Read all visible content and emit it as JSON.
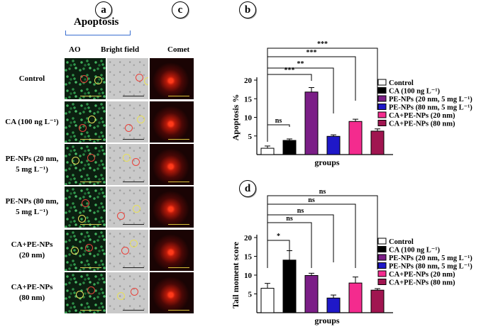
{
  "panels": {
    "a": "a",
    "b": "b",
    "c": "c",
    "d": "d"
  },
  "panel_a": {
    "apoptosis_label": "Apoptosis",
    "col_ao": "AO",
    "col_bf": "Bright field",
    "col_comet": "Comet"
  },
  "row_labels": [
    [
      "Control"
    ],
    [
      "CA (100 ng L⁻¹)"
    ],
    [
      "PE-NPs (20 nm,",
      "5 mg L⁻¹)"
    ],
    [
      "PE-NPs (80 nm,",
      "5 mg L⁻¹)"
    ],
    [
      "CA+PE-NPs",
      "(20 nm)"
    ],
    [
      "CA+PE-NPs",
      "(80 nm)"
    ]
  ],
  "colors": {
    "control": "#ffffff",
    "ca": "#000000",
    "pe20": "#7b1e87",
    "pe80": "#1f18c8",
    "capes20": "#f42b8e",
    "capes80": "#a01550",
    "ao_bar": "#d6cc55",
    "bf_bar": "#222222",
    "comet_bar": "#d9c23a"
  },
  "legend": [
    "Control",
    "CA (100 ng L⁻¹)",
    "PE-NPs (20 nm, 5 mg L⁻¹)",
    "PE-NPs (80 nm, 5 mg L⁻¹)",
    "CA+PE-NPs (20 nm)",
    "CA+PE-NPs (80 nm)"
  ],
  "chart_data": [
    {
      "type": "bar",
      "panel": "b",
      "ylabel": "Apoptosis %",
      "xlabel": "groups",
      "ylim": [
        0,
        20
      ],
      "yticks": [
        5,
        10,
        15,
        20
      ],
      "categories": [
        "Control",
        "CA (100 ng L⁻¹)",
        "PE-NPs (20 nm, 5 mg L⁻¹)",
        "PE-NPs (80 nm, 5 mg L⁻¹)",
        "CA+PE-NPs (20 nm)",
        "CA+PE-NPs (80 nm)"
      ],
      "values": [
        1.7,
        3.8,
        16.8,
        4.9,
        8.9,
        6.3
      ],
      "errors": [
        0.6,
        0.4,
        1.2,
        0.4,
        0.6,
        0.6
      ],
      "significance": [
        {
          "from": 0,
          "to": 1,
          "label": "ns"
        },
        {
          "from": 0,
          "to": 2,
          "label": "***"
        },
        {
          "from": 0,
          "to": 3,
          "label": "**"
        },
        {
          "from": 0,
          "to": 4,
          "label": "***"
        },
        {
          "from": 0,
          "to": 5,
          "label": "***"
        }
      ]
    },
    {
      "type": "bar",
      "panel": "d",
      "ylabel": "Tail moment score",
      "xlabel": "groups",
      "ylim": [
        0,
        20
      ],
      "yticks": [
        5,
        10,
        15,
        20
      ],
      "categories": [
        "Control",
        "CA (100 ng L⁻¹)",
        "PE-NPs (20 nm, 5 mg L⁻¹)",
        "PE-NPs (80 nm, 5 mg L⁻¹)",
        "CA+PE-NPs (20 nm)",
        "CA+PE-NPs (80 nm)"
      ],
      "values": [
        6.5,
        14.0,
        9.9,
        3.9,
        7.9,
        6.0
      ],
      "errors": [
        1.3,
        2.5,
        0.6,
        0.8,
        1.6,
        0.4
      ],
      "significance": [
        {
          "from": 0,
          "to": 1,
          "label": "*"
        },
        {
          "from": 0,
          "to": 2,
          "label": "ns"
        },
        {
          "from": 0,
          "to": 3,
          "label": "ns"
        },
        {
          "from": 0,
          "to": 4,
          "label": "ns"
        },
        {
          "from": 0,
          "to": 5,
          "label": "ns"
        }
      ]
    }
  ]
}
